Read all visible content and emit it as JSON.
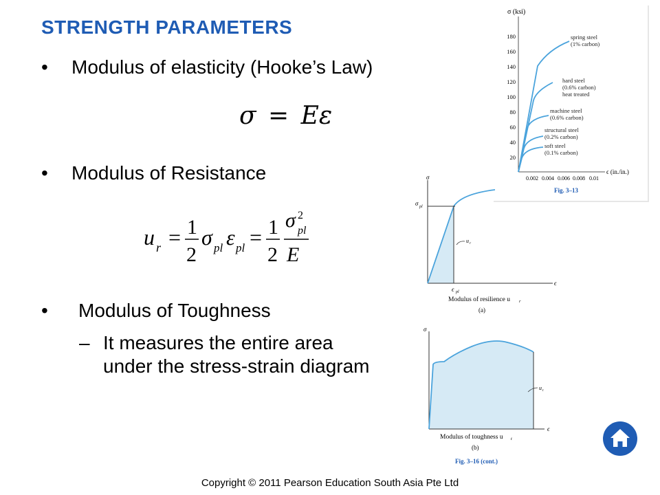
{
  "slide": {
    "title": "STRENGTH PARAMETERS",
    "bullets": [
      {
        "marker": "•",
        "text": "Modulus of elasticity (Hooke’s Law)"
      },
      {
        "marker": "•",
        "text": "Modulus of Resistance"
      },
      {
        "marker": "•",
        "text": "Modulus of Toughness"
      }
    ],
    "sub_bullet": {
      "marker": "–",
      "line1": "It measures the entire area",
      "line2": "under the stress-strain diagram"
    },
    "footer": "Copyright © 2011 Pearson Education South Asia Pte Ltd",
    "colors": {
      "title": "#1f5cb4",
      "curve": "#4aa3dc",
      "fill": "#d6eaf5",
      "home_button": "#1f5cb4"
    }
  },
  "equations": {
    "hooke": {
      "lhs": "σ",
      "eq": "=",
      "rhs": "Eε"
    },
    "resilience": {
      "u": "u",
      "r": "r",
      "eq": "=",
      "one": "1",
      "two": "2",
      "sigma": "σ",
      "eps": "ε",
      "pl": "pl",
      "sq": "2",
      "E": "E"
    }
  },
  "figure_stress": {
    "y_axis_label": "σ (ksi)",
    "x_axis_label": "ϵ (in./in.)",
    "y_ticks": [
      "20",
      "40",
      "60",
      "80",
      "100",
      "120",
      "140",
      "160",
      "180"
    ],
    "x_ticks": [
      "0.002",
      "0.004",
      "0.006",
      "0.008",
      "0.01"
    ],
    "caption": "Fig. 3–13",
    "curve_labels": [
      {
        "l1": "spring steel",
        "l2": "(1% carbon)"
      },
      {
        "l1": "hard steel",
        "l2": "(0.6% carbon)",
        "l3": "heat treated"
      },
      {
        "l1": "machine steel",
        "l2": "(0.6% carbon)"
      },
      {
        "l1": "structural steel",
        "l2": "(0.2% carbon)"
      },
      {
        "l1": "soft steel",
        "l2": "(0.1% carbon)"
      }
    ]
  },
  "figure_resilience": {
    "sigma": "σ",
    "sigma_pl": "σ",
    "pl": "pl",
    "eps": "ϵ",
    "eps_pl": "ϵ",
    "ur": "u",
    "r": "r",
    "caption_main": "Modulus of resilience u",
    "caption_sub": "r",
    "caption_label": "(a)"
  },
  "figure_toughness": {
    "sigma": "σ",
    "eps": "ϵ",
    "ut": "u",
    "t": "t",
    "caption_main": "Modulus of toughness u",
    "caption_sub": "t",
    "caption_label": "(b)",
    "fig_caption": "Fig. 3–16 (cont.)"
  }
}
